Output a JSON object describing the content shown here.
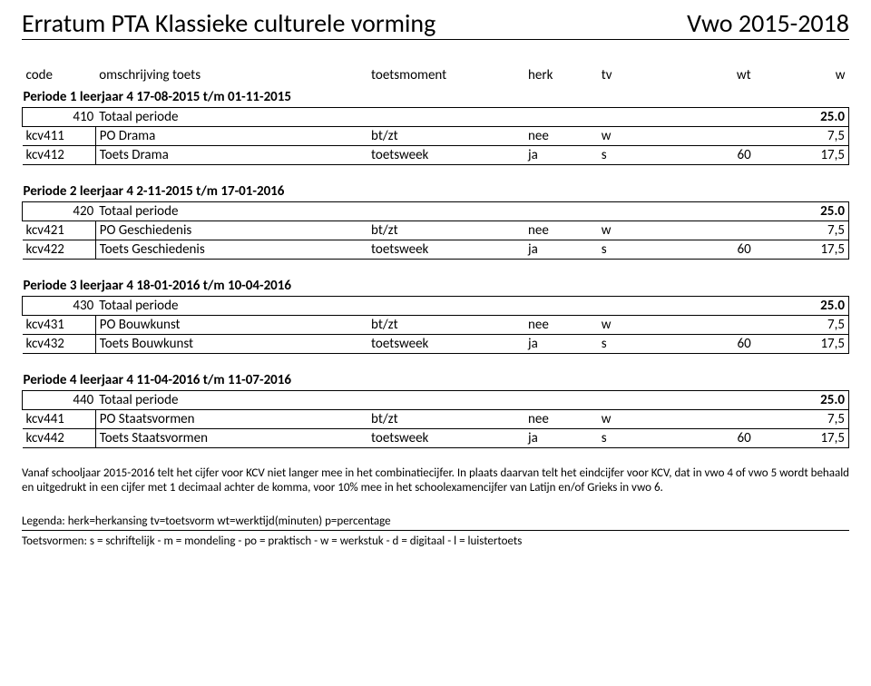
{
  "header": {
    "title": "Erratum PTA Klassieke culturele vorming",
    "year": "Vwo 2015-2018"
  },
  "columns": {
    "code": "code",
    "omschrijving": "omschrijving toets",
    "toetsmoment": "toetsmoment",
    "herk": "herk",
    "tv": "tv",
    "wt": "wt",
    "w": "w"
  },
  "periods": [
    {
      "title": "Periode 1 leerjaar 4 17-08-2015 t/m 01-11-2015",
      "total_code": "410",
      "total_label": "Totaal periode",
      "total_w": "25.0",
      "rows": [
        {
          "code": "kcv411",
          "omschrijving": "PO Drama",
          "moment": "bt/zt",
          "herk": "nee",
          "tv": "w",
          "wt": "",
          "w": "7,5"
        },
        {
          "code": "kcv412",
          "omschrijving": "Toets Drama",
          "moment": "toetsweek",
          "herk": "ja",
          "tv": "s",
          "wt": "60",
          "w": "17,5"
        }
      ]
    },
    {
      "title": "Periode 2 leerjaar 4 2-11-2015 t/m 17-01-2016",
      "total_code": "420",
      "total_label": "Totaal periode",
      "total_w": "25.0",
      "rows": [
        {
          "code": "kcv421",
          "omschrijving": "PO Geschiedenis",
          "moment": "bt/zt",
          "herk": "nee",
          "tv": "w",
          "wt": "",
          "w": "7,5"
        },
        {
          "code": "kcv422",
          "omschrijving": "Toets Geschiedenis",
          "moment": "toetsweek",
          "herk": "ja",
          "tv": "s",
          "wt": "60",
          "w": "17,5"
        }
      ]
    },
    {
      "title": "Periode 3 leerjaar 4 18-01-2016 t/m 10-04-2016",
      "total_code": "430",
      "total_label": "Totaal periode",
      "total_w": "25.0",
      "rows": [
        {
          "code": "kcv431",
          "omschrijving": "PO Bouwkunst",
          "moment": "bt/zt",
          "herk": "nee",
          "tv": "w",
          "wt": "",
          "w": "7,5"
        },
        {
          "code": "kcv432",
          "omschrijving": "Toets Bouwkunst",
          "moment": "toetsweek",
          "herk": "ja",
          "tv": "s",
          "wt": "60",
          "w": "17,5"
        }
      ]
    },
    {
      "title": "Periode 4 leerjaar 4 11-04-2016 t/m 11-07-2016",
      "total_code": "440",
      "total_label": "Totaal periode",
      "total_w": "25.0",
      "rows": [
        {
          "code": "kcv441",
          "omschrijving": "PO Staatsvormen",
          "moment": "bt/zt",
          "herk": "nee",
          "tv": "w",
          "wt": "",
          "w": "7,5"
        },
        {
          "code": "kcv442",
          "omschrijving": "Toets Staatsvormen",
          "moment": "toetsweek",
          "herk": "ja",
          "tv": "s",
          "wt": "60",
          "w": "17,5"
        }
      ]
    }
  ],
  "body_text": "Vanaf schooljaar 2015-2016 telt het cijfer voor KCV niet langer mee in het combinatiecijfer. In plaats daarvan telt het eindcijfer voor KCV, dat in vwo 4 of vwo 5 wordt behaald en uitgedrukt in een cijfer met 1 decimaal achter de komma, voor 10% mee in het schoolexamencijfer van Latijn en/of Grieks in vwo 6.",
  "legend": "Legenda: herk=herkansing   tv=toetsvorm   wt=werktijd(minuten)  p=percentage",
  "toetsvormen": "Toetsvormen: s = schriftelijk - m = mondeling - po = praktisch - w = werkstuk - d = digitaal - l = luistertoets"
}
